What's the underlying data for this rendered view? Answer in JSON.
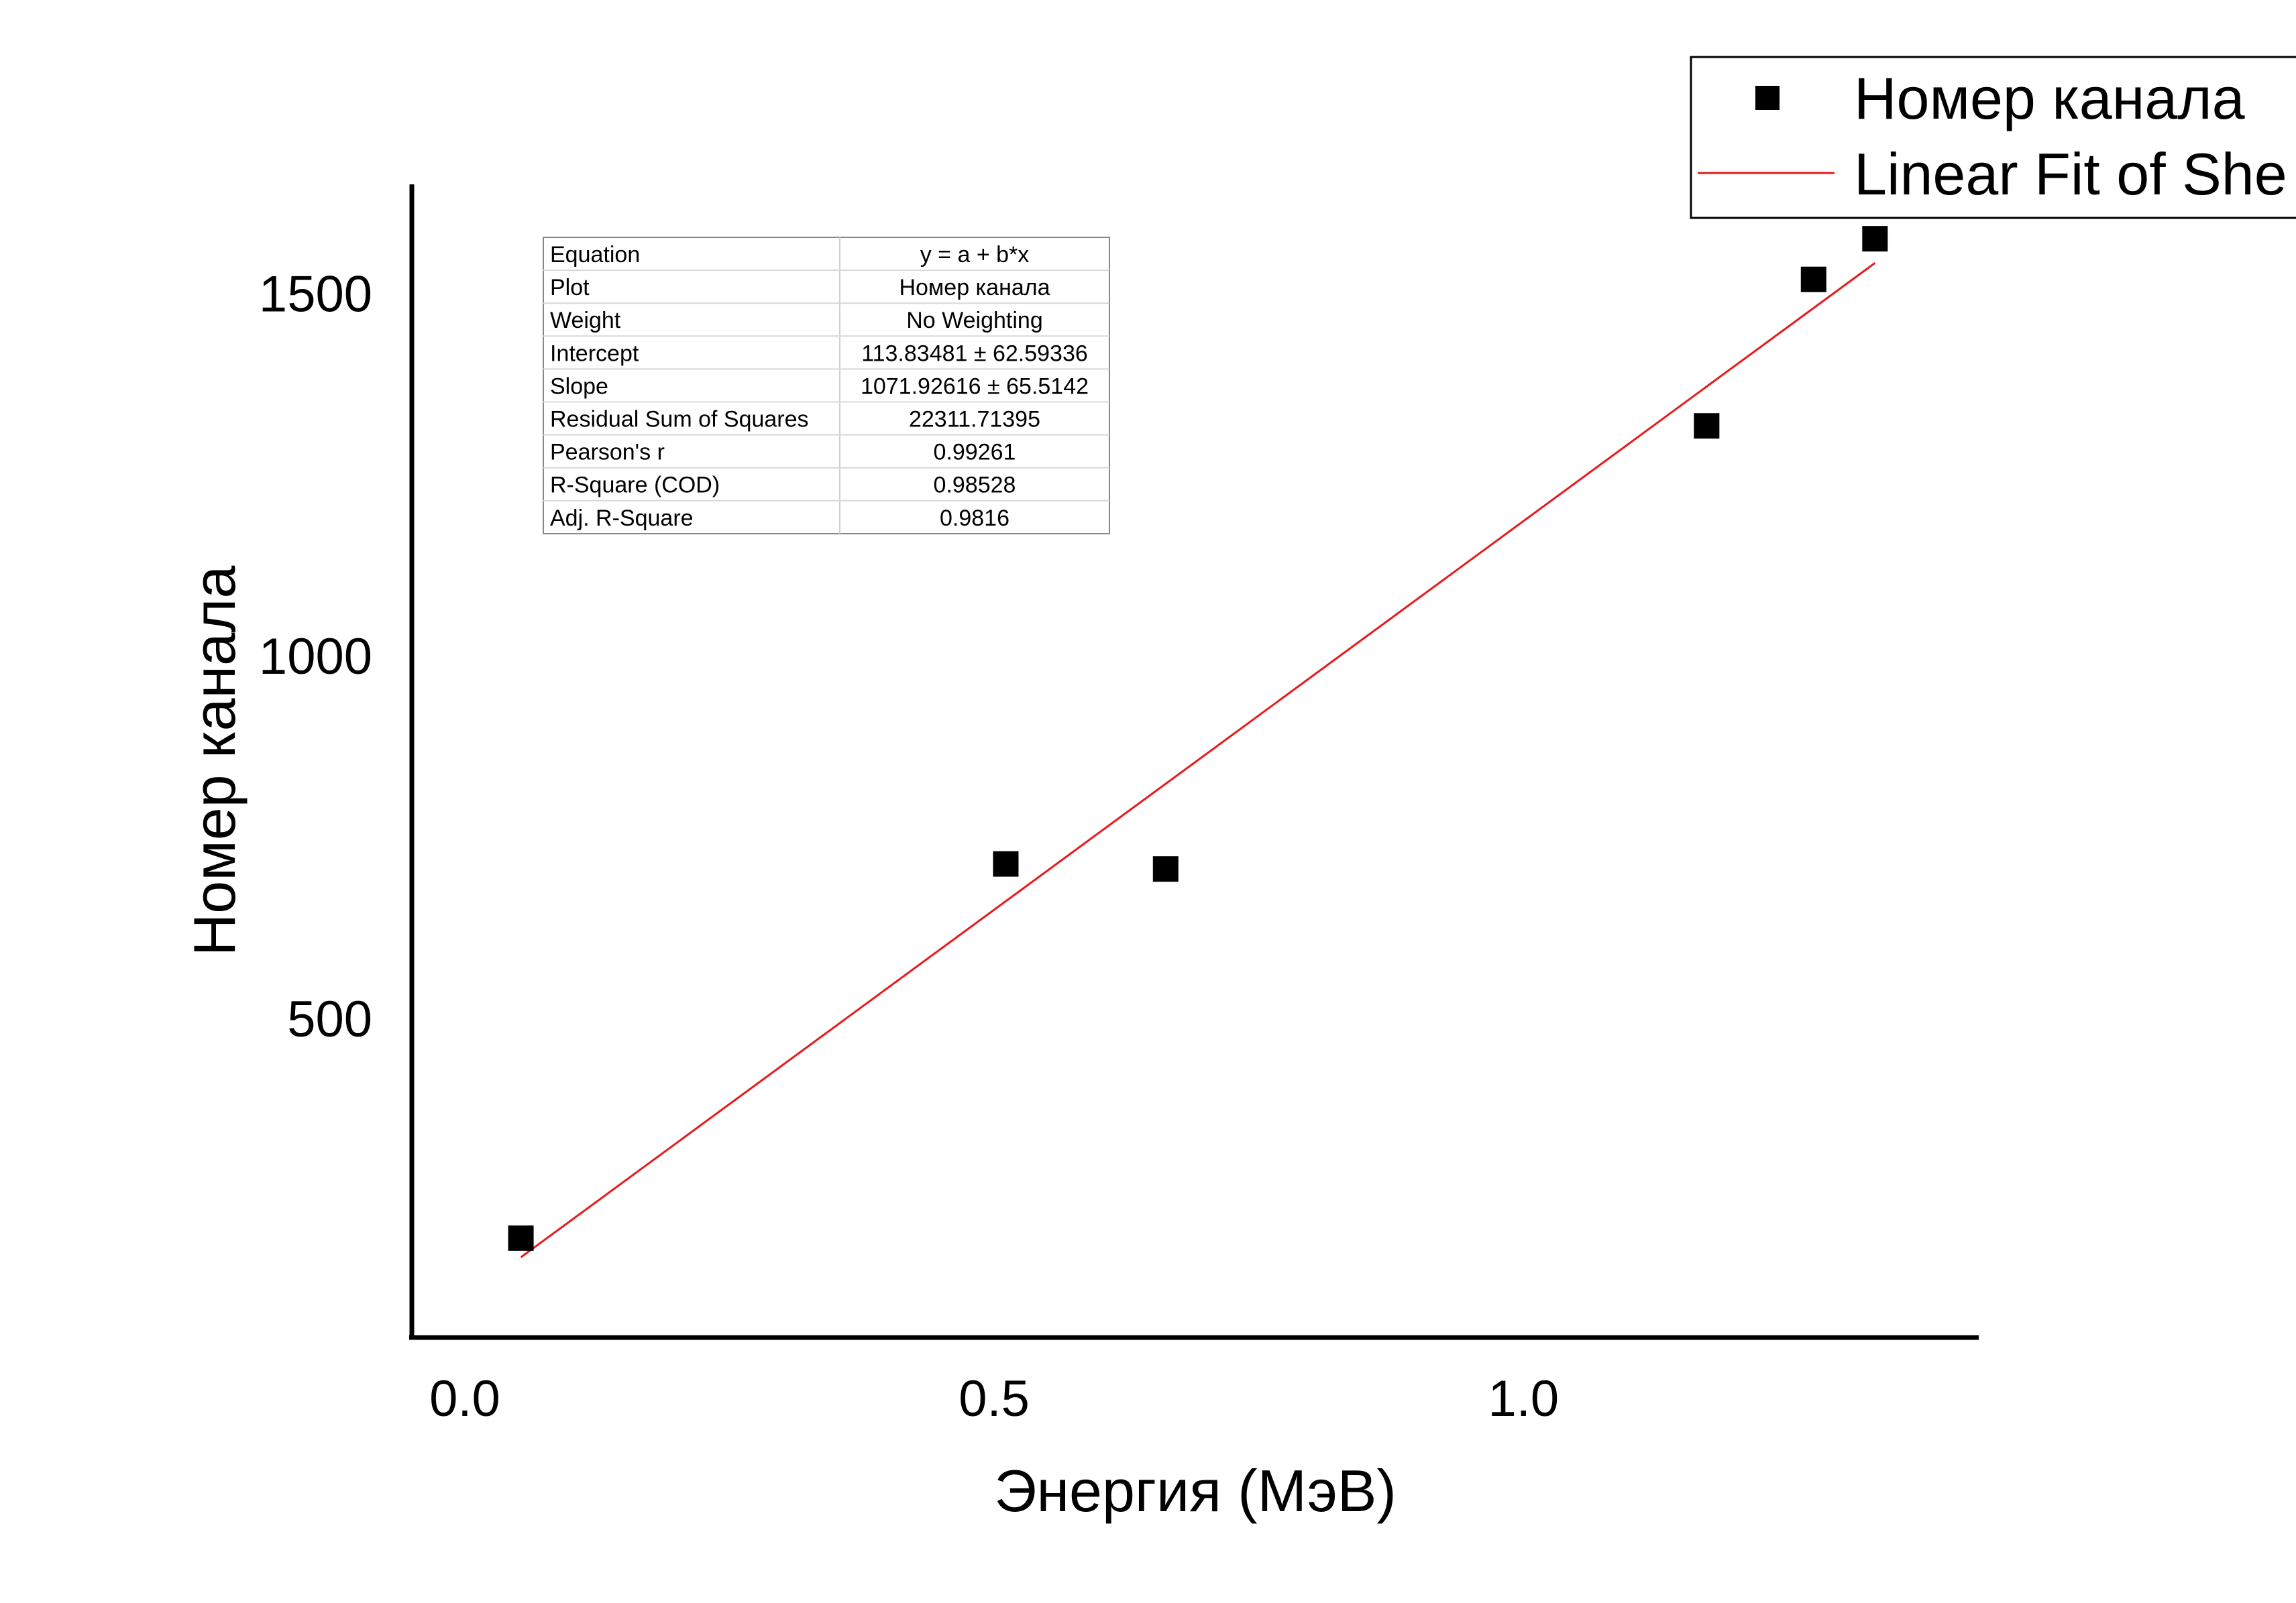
{
  "chart_data": {
    "type": "scatter",
    "title": "",
    "xlabel": "Энергия (МэВ)",
    "ylabel": "Номер канала",
    "xlim": [
      -0.05,
      1.43
    ],
    "ylim": [
      60,
      1650
    ],
    "xticks": [
      0.0,
      0.5,
      1.0
    ],
    "xtick_labels": [
      "0.0",
      "0.5",
      "1.0"
    ],
    "yticks": [
      500,
      1000,
      1500
    ],
    "ytick_labels": [
      "500",
      "1000",
      "1500"
    ],
    "grid": false,
    "legend_position": "top-right",
    "series": [
      {
        "name": "Номер канала",
        "kind": "scatter",
        "marker": "square",
        "color": "#000000",
        "points": [
          {
            "x": 0.053,
            "y": 197
          },
          {
            "x": 0.511,
            "y": 713
          },
          {
            "x": 0.662,
            "y": 706
          },
          {
            "x": 1.173,
            "y": 1317
          },
          {
            "x": 1.274,
            "y": 1519
          },
          {
            "x": 1.332,
            "y": 1575
          }
        ]
      },
      {
        "name": "Linear Fit of She",
        "kind": "line",
        "color": "#e8191b",
        "intercept": 113.83481,
        "slope": 1071.92616,
        "x_range": [
          0.053,
          1.332
        ]
      }
    ],
    "fit_table": {
      "rows": [
        {
          "label": "Equation",
          "value": "y = a + b*x"
        },
        {
          "label": "Plot",
          "value": "Номер канала"
        },
        {
          "label": "Weight",
          "value": "No Weighting"
        },
        {
          "label": "Intercept",
          "value": "113.83481 ± 62.59336"
        },
        {
          "label": "Slope",
          "value": "1071.92616 ± 65.5142"
        },
        {
          "label": "Residual Sum of Squares",
          "value": "22311.71395"
        },
        {
          "label": "Pearson's r",
          "value": "0.99261"
        },
        {
          "label": "R-Square (COD)",
          "value": "0.98528"
        },
        {
          "label": "Adj. R-Square",
          "value": "0.9816"
        }
      ]
    }
  }
}
